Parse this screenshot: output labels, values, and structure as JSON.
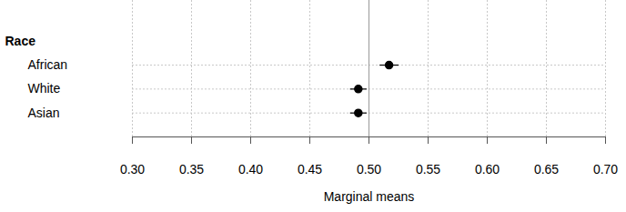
{
  "chart_data": {
    "type": "dot",
    "orientation": "horizontal",
    "ylabel": "Race",
    "xlabel": "Marginal means",
    "categories": [
      "African",
      "White",
      "Asian"
    ],
    "values": [
      0.517,
      0.491,
      0.491
    ],
    "ci_low": [
      0.509,
      0.484,
      0.484
    ],
    "ci_high": [
      0.525,
      0.498,
      0.498
    ],
    "reference_line": 0.5,
    "color": "#000000",
    "xlim": [
      0.3,
      0.7
    ],
    "xticks": [
      {
        "value": 0.3,
        "label": "0.30"
      },
      {
        "value": 0.35,
        "label": "0.35"
      },
      {
        "value": 0.4,
        "label": "0.40"
      },
      {
        "value": 0.45,
        "label": "0.45"
      },
      {
        "value": 0.5,
        "label": "0.50"
      },
      {
        "value": 0.55,
        "label": "0.55"
      },
      {
        "value": 0.6,
        "label": "0.60"
      },
      {
        "value": 0.65,
        "label": "0.65"
      },
      {
        "value": 0.7,
        "label": "0.70"
      }
    ],
    "grid": true
  }
}
